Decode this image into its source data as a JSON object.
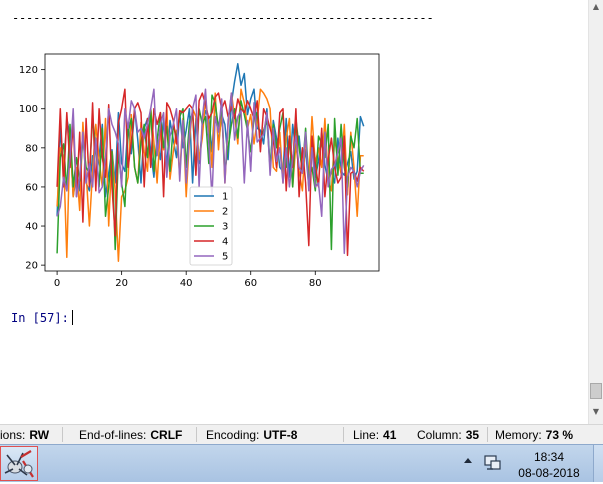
{
  "console": {
    "separator": "------------------------------------------------------------",
    "prompt_label": "In [57]:"
  },
  "chart_data": {
    "type": "line",
    "x": [
      0,
      1,
      2,
      3,
      4,
      5,
      6,
      7,
      8,
      9,
      10,
      11,
      12,
      13,
      14,
      15,
      16,
      17,
      18,
      19,
      20,
      21,
      22,
      23,
      24,
      25,
      26,
      27,
      28,
      29,
      30,
      31,
      32,
      33,
      34,
      35,
      36,
      37,
      38,
      39,
      40,
      41,
      42,
      43,
      44,
      45,
      46,
      47,
      48,
      49,
      50,
      51,
      52,
      53,
      54,
      55,
      56,
      57,
      58,
      59,
      60,
      61,
      62,
      63,
      64,
      65,
      66,
      67,
      68,
      69,
      70,
      71,
      72,
      73,
      74,
      75,
      76,
      77,
      78,
      79,
      80,
      81,
      82,
      83,
      84,
      85,
      86,
      87,
      88,
      89,
      90,
      91,
      92,
      93,
      94,
      95
    ],
    "xticks": [
      0,
      20,
      40,
      60,
      80
    ],
    "yticks": [
      20,
      40,
      60,
      80,
      100,
      120
    ],
    "xlim": [
      -3.75,
      99.75
    ],
    "ylim": [
      17,
      128
    ],
    "legend_position": "lower-center",
    "series": [
      {
        "name": "1",
        "color": "#1f77b4",
        "values": [
          45,
          90,
          68,
          95,
          86,
          55,
          67,
          58,
          90,
          62,
          58,
          76,
          65,
          75,
          92,
          55,
          67,
          79,
          62,
          98,
          72,
          68,
          92,
          77,
          100,
          84,
          62,
          90,
          95,
          78,
          65,
          84,
          74,
          95,
          70,
          94,
          84,
          75,
          98,
          80,
          89,
          100,
          62,
          95,
          72,
          90,
          99,
          95,
          78,
          105,
          82,
          97,
          92,
          74,
          103,
          114,
          123,
          112,
          118,
          97,
          105,
          110,
          90,
          89,
          82,
          100,
          69,
          94,
          85,
          70,
          68,
          95,
          65,
          92,
          78,
          86,
          68,
          79,
          60,
          85,
          65,
          73,
          88,
          71,
          63,
          68,
          62,
          85,
          68,
          66,
          72,
          78,
          64,
          68,
          96,
          91
        ]
      },
      {
        "name": "2",
        "color": "#ff7f0e",
        "values": [
          50,
          80,
          75,
          24,
          85,
          55,
          70,
          48,
          93,
          67,
          40,
          68,
          92,
          74,
          60,
          95,
          40,
          78,
          58,
          22,
          55,
          58,
          65,
          97,
          70,
          62,
          93,
          78,
          68,
          100,
          83,
          62,
          90,
          79,
          100,
          64,
          78,
          89,
          66,
          95,
          55,
          84,
          100,
          96,
          74,
          85,
          105,
          92,
          70,
          108,
          79,
          100,
          62,
          92,
          108,
          96,
          82,
          110,
          103,
          90,
          97,
          82,
          94,
          110,
          108,
          105,
          100,
          70,
          68,
          88,
          62,
          85,
          95,
          60,
          82,
          68,
          58,
          86,
          64,
          96,
          72,
          80,
          70,
          95,
          64,
          58,
          85,
          74,
          67,
          92,
          56,
          88,
          70,
          45,
          76,
          76
        ]
      },
      {
        "name": "3",
        "color": "#2ca02c",
        "values": [
          26,
          75,
          82,
          58,
          92,
          60,
          75,
          63,
          85,
          70,
          67,
          95,
          80,
          60,
          90,
          45,
          60,
          78,
          28,
          78,
          62,
          50,
          88,
          95,
          70,
          62,
          83,
          92,
          75,
          100,
          68,
          84,
          98,
          80,
          91,
          68,
          92,
          85,
          96,
          100,
          70,
          93,
          98,
          68,
          100,
          92,
          96,
          72,
          107,
          103,
          90,
          100,
          68,
          80,
          92,
          100,
          85,
          104,
          97,
          89,
          78,
          95,
          98,
          83,
          89,
          94,
          70,
          92,
          80,
          90,
          98,
          70,
          86,
          60,
          95,
          80,
          68,
          90,
          64,
          70,
          58,
          86,
          82,
          75,
          92,
          28,
          95,
          66,
          92,
          70,
          60,
          86,
          80,
          95,
          67,
          67
        ]
      },
      {
        "name": "4",
        "color": "#d62728",
        "values": [
          60,
          100,
          60,
          98,
          70,
          92,
          55,
          88,
          42,
          95,
          60,
          103,
          58,
          100,
          75,
          65,
          102,
          60,
          35,
          93,
          100,
          110,
          70,
          83,
          100,
          103,
          98,
          60,
          95,
          70,
          100,
          92,
          98,
          55,
          103,
          100,
          94,
          82,
          99,
          98,
          100,
          102,
          100,
          66,
          104,
          108,
          102,
          95,
          98,
          106,
          108,
          100,
          104,
          96,
          101,
          95,
          105,
          100,
          98,
          104,
          100,
          95,
          104,
          78,
          100,
          96,
          90,
          84,
          70,
          98,
          100,
          58,
          86,
          70,
          100,
          55,
          80,
          62,
          30,
          86,
          72,
          60,
          90,
          55,
          74,
          85,
          70,
          62,
          65,
          86,
          25,
          67,
          68,
          63,
          70,
          68
        ]
      },
      {
        "name": "5",
        "color": "#9467bd",
        "values": [
          45,
          50,
          65,
          58,
          75,
          100,
          55,
          65,
          88,
          62,
          72,
          60,
          85,
          57,
          60,
          75,
          100,
          92,
          88,
          82,
          60,
          100,
          90,
          104,
          100,
          88,
          90,
          85,
          92,
          100,
          110,
          76,
          92,
          98,
          65,
          86,
          92,
          100,
          63,
          94,
          62,
          87,
          100,
          107,
          60,
          95,
          110,
          82,
          55,
          96,
          88,
          105,
          62,
          94,
          108,
          84,
          96,
          99,
          62,
          94,
          68,
          103,
          83,
          85,
          87,
          98,
          66,
          90,
          73,
          80,
          62,
          80,
          60,
          75,
          86,
          70,
          67,
          88,
          58,
          80,
          60,
          62,
          45,
          88,
          60,
          69,
          71,
          78,
          85,
          26,
          65,
          70,
          68,
          60,
          68,
          71
        ]
      }
    ]
  },
  "statusbar": {
    "permissions_label": "ions:",
    "permissions_value": "RW",
    "eol_label": "End-of-lines:",
    "eol_value": "CRLF",
    "encoding_label": "Encoding:",
    "encoding_value": "UTF-8",
    "line_label": "Line:",
    "line_value": "41",
    "column_label": "Column:",
    "column_value": "35",
    "memory_label": "Memory:",
    "memory_value": "73 %"
  },
  "taskbar": {
    "time": "18:34",
    "date": "08-08-2018",
    "app_icon": "spyder-icon",
    "tray_icons": [
      "tray-overflow-icon",
      "network-icon"
    ]
  }
}
